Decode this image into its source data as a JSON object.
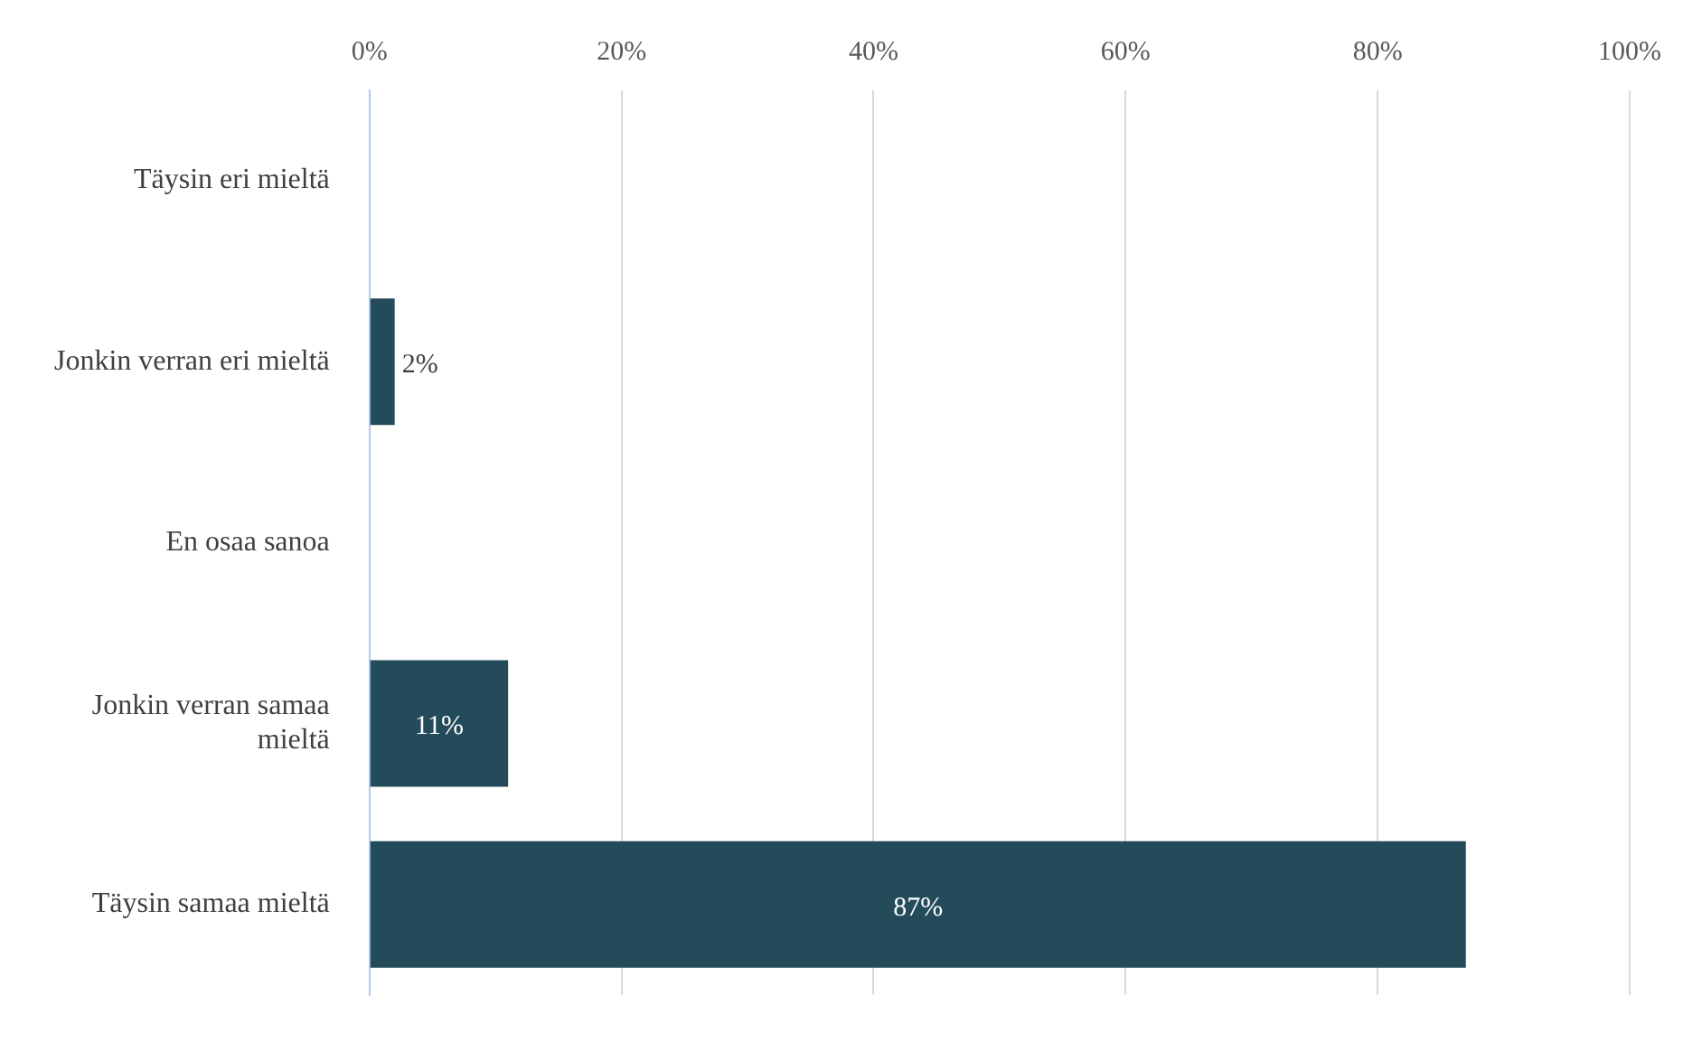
{
  "chart_data": {
    "type": "bar",
    "orientation": "horizontal",
    "categories": [
      "Täysin eri mieltä",
      "Jonkin verran eri mieltä",
      "En osaa sanoa",
      "Jonkin verran samaa mieltä",
      "Täysin samaa mieltä"
    ],
    "values": [
      0,
      2,
      0,
      11,
      87
    ],
    "value_labels": [
      null,
      "2%",
      null,
      "11%",
      "87%"
    ],
    "color": "#244b5a",
    "xlim": [
      0,
      100
    ],
    "xticks": [
      {
        "value": 0,
        "label": "0%"
      },
      {
        "value": 20,
        "label": "20%"
      },
      {
        "value": 40,
        "label": "40%"
      },
      {
        "value": 60,
        "label": "60%"
      },
      {
        "value": 80,
        "label": "80%"
      },
      {
        "value": 100,
        "label": "100%"
      }
    ],
    "grid": "x",
    "legend": false
  }
}
